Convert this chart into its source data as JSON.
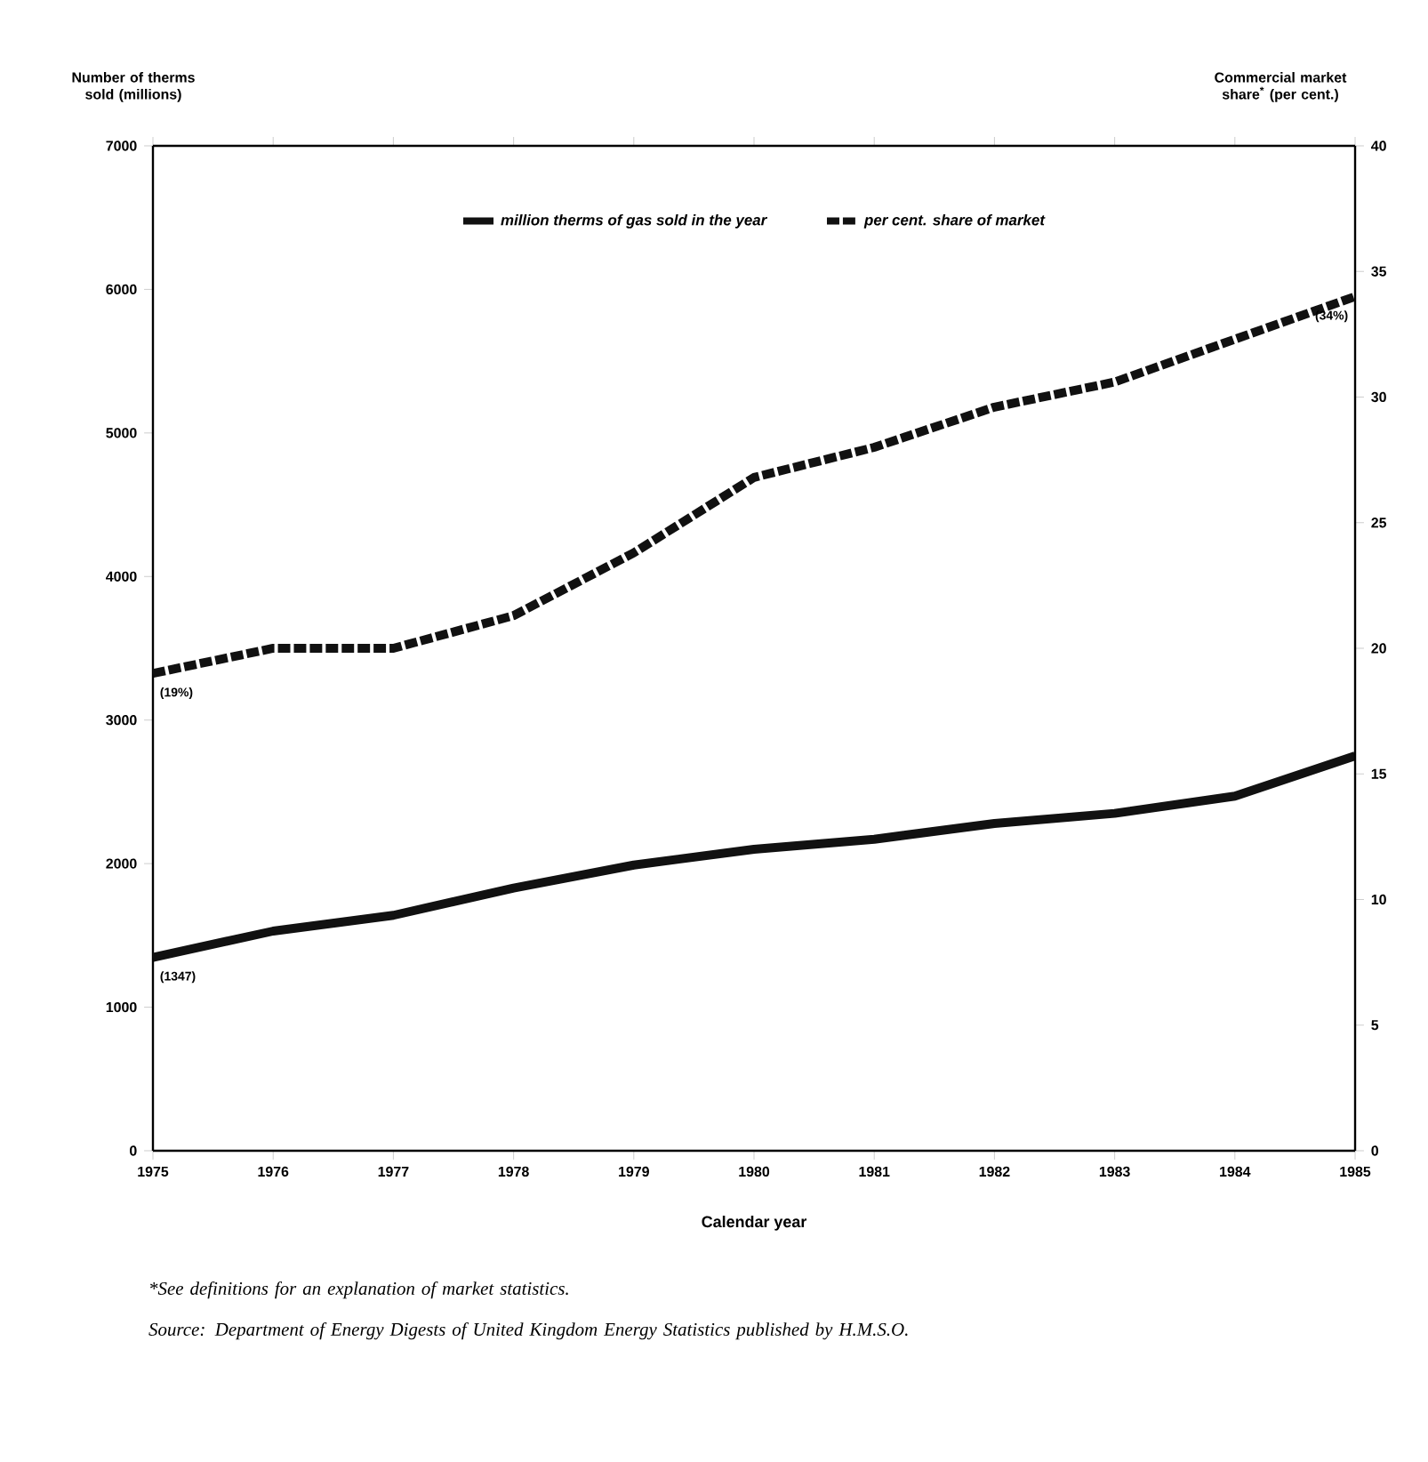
{
  "chart_data": {
    "type": "line",
    "xlabel": "Calendar year",
    "ylabel": "Number of therms sold (millions)",
    "y2label": "Commercial market share$^{*}$ (per cent.)",
    "x": [
      1975,
      1976,
      1977,
      1978,
      1979,
      1980,
      1981,
      1982,
      1983,
      1984,
      1985
    ],
    "series": [
      {
        "name": "million therms of gas sold in the year",
        "color": "#111111",
        "line_style": "solid",
        "values": [
          1347,
          1530,
          1640,
          1830,
          1990,
          2100,
          2170,
          2280,
          2350,
          2470,
          2750
        ],
        "value_labels": [
          "(1347)",
          null,
          null,
          null,
          null,
          null,
          null,
          null,
          null,
          null,
          null
        ]
      },
      {
        "name": "per cent. share of market",
        "color": "#111111",
        "line_style": "dashed",
        "axis": "y2",
        "values": [
          19,
          20,
          20,
          21.3,
          23.8,
          26.8,
          28,
          29.6,
          30.6,
          32.3,
          34
        ],
        "value_labels": [
          "(19%)",
          null,
          null,
          null,
          null,
          null,
          null,
          null,
          null,
          null,
          "(34%)"
        ]
      }
    ],
    "xlim": [
      1975,
      1985
    ],
    "xticks": [
      1975,
      1976,
      1977,
      1978,
      1979,
      1980,
      1981,
      1982,
      1983,
      1984,
      1985
    ],
    "ylim": [
      0,
      7000
    ],
    "yticks": [
      0,
      1000,
      2000,
      3000,
      4000,
      5000,
      6000,
      7000
    ],
    "y2lim": [
      0,
      40
    ],
    "y2ticks": [
      0,
      5,
      10,
      15,
      20,
      25,
      30,
      35,
      40
    ],
    "legend": "top",
    "grid": false,
    "marker": "none",
    "annotations": [
      "*See definitions for an explanation of market statistics.",
      "Source: Department of Energy Digests of United Kingdom Energy Statistics published by H.M.S.O."
    ]
  }
}
